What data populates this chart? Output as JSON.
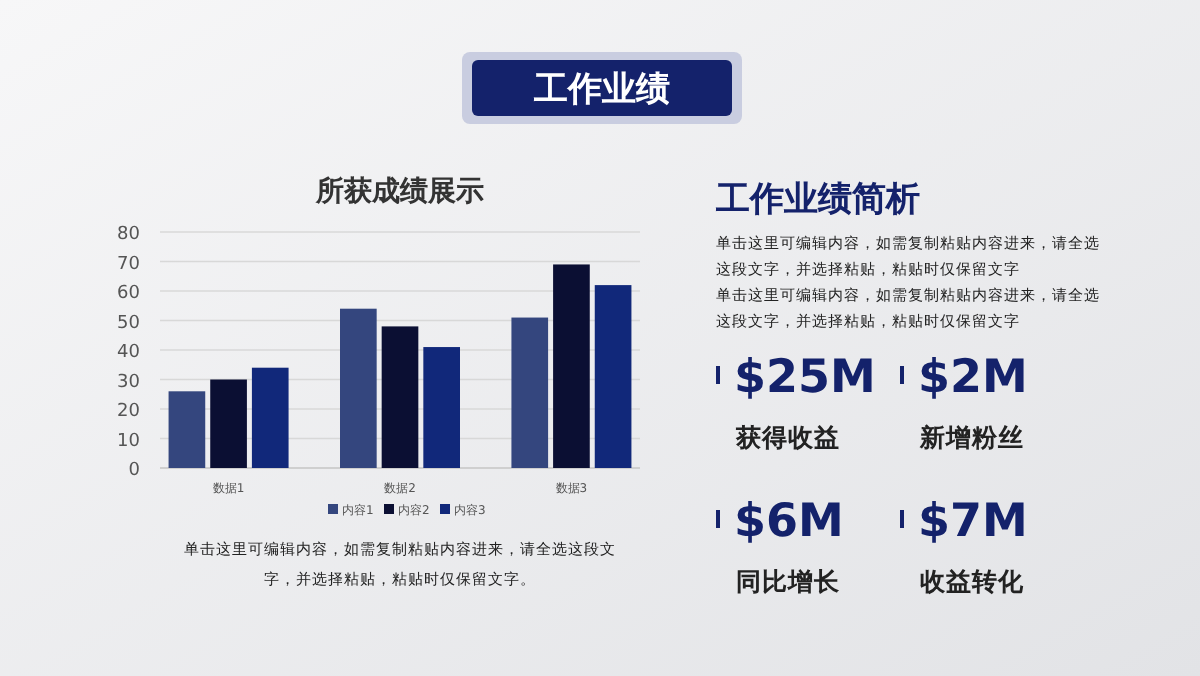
{
  "chart_data": {
    "type": "bar",
    "title": "所获成绩展示",
    "categories": [
      "数据1",
      "数据2",
      "数据3"
    ],
    "series": [
      {
        "name": "内容1",
        "color": "#34467e",
        "values": [
          26,
          54,
          51
        ]
      },
      {
        "name": "内容2",
        "color": "#0b0f33",
        "values": [
          30,
          48,
          69
        ]
      },
      {
        "name": "内容3",
        "color": "#11287a",
        "values": [
          34,
          41,
          62
        ]
      }
    ],
    "ylim": [
      0,
      80
    ],
    "yticks": [
      0,
      10,
      20,
      30,
      40,
      50,
      60,
      70,
      80
    ],
    "grid": "y",
    "legend": "bottom",
    "annotations": [
      "工作业绩",
      "工作业绩简析",
      "单击这里可编辑内容，如需复制粘贴内容进来，请全选这段文字，并选择粘贴，粘贴时仅保留文字",
      "单击这里可编辑内容，如需复制粘贴内容进来，请全选这段文字，并选择粘贴，粘贴时仅保留文字",
      "$25M",
      "获得收益",
      "$2M",
      "新增粉丝",
      "$6M",
      "同比增长",
      "$7M",
      "收益转化",
      "单击这里可编辑内容，如需复制粘贴内容进来，请全选这段文字，并选择粘贴，粘贴时仅保留文字。"
    ]
  }
}
